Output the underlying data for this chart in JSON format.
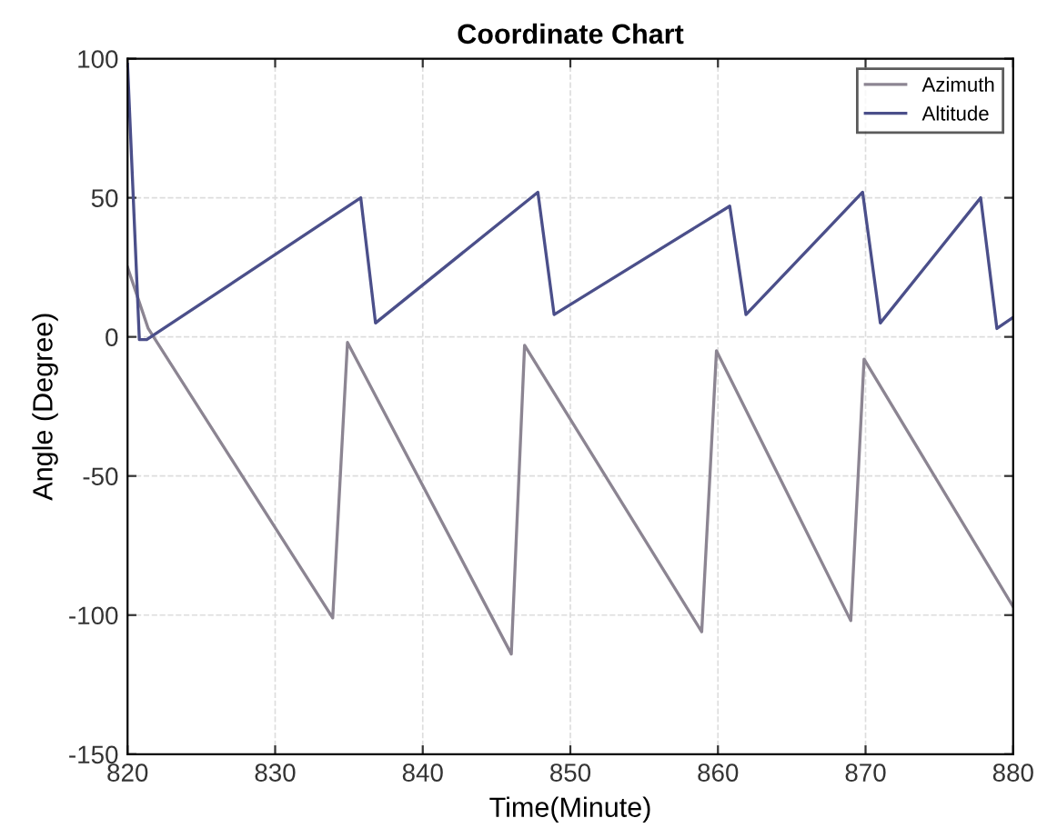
{
  "chart_data": {
    "type": "line",
    "title": "Coordinate Chart",
    "xlabel": "Time(Minute)",
    "ylabel": "Angle (Degree)",
    "series": [
      {
        "name": "Azimuth",
        "color": "#8c8592",
        "x": [
          820,
          821.4,
          833.9,
          834.9,
          846.0,
          846.9,
          858.9,
          859.9,
          869.0,
          869.9,
          880
        ],
        "values": [
          25,
          3,
          -101,
          -2,
          -114,
          -3,
          -106,
          -5,
          -102,
          -8,
          -97
        ]
      },
      {
        "name": "Altitude",
        "color": "#4b4f8a",
        "x": [
          820,
          820.8,
          821.3,
          835.8,
          836.8,
          847.8,
          848.9,
          860.8,
          861.9,
          869.8,
          871.0,
          877.8,
          878.9,
          880
        ],
        "values": [
          98,
          -1,
          -1,
          50,
          5,
          52,
          8,
          47,
          8,
          52,
          5,
          50,
          3,
          7
        ]
      }
    ],
    "xlim": [
      820,
      880
    ],
    "xticks": [
      820,
      830,
      840,
      850,
      860,
      870,
      880
    ],
    "ylim": [
      -150,
      100
    ],
    "yticks": [
      -150,
      -100,
      -50,
      0,
      50,
      100
    ],
    "grid": true,
    "legend": "top right",
    "line_style": "solid",
    "marker": "none"
  }
}
